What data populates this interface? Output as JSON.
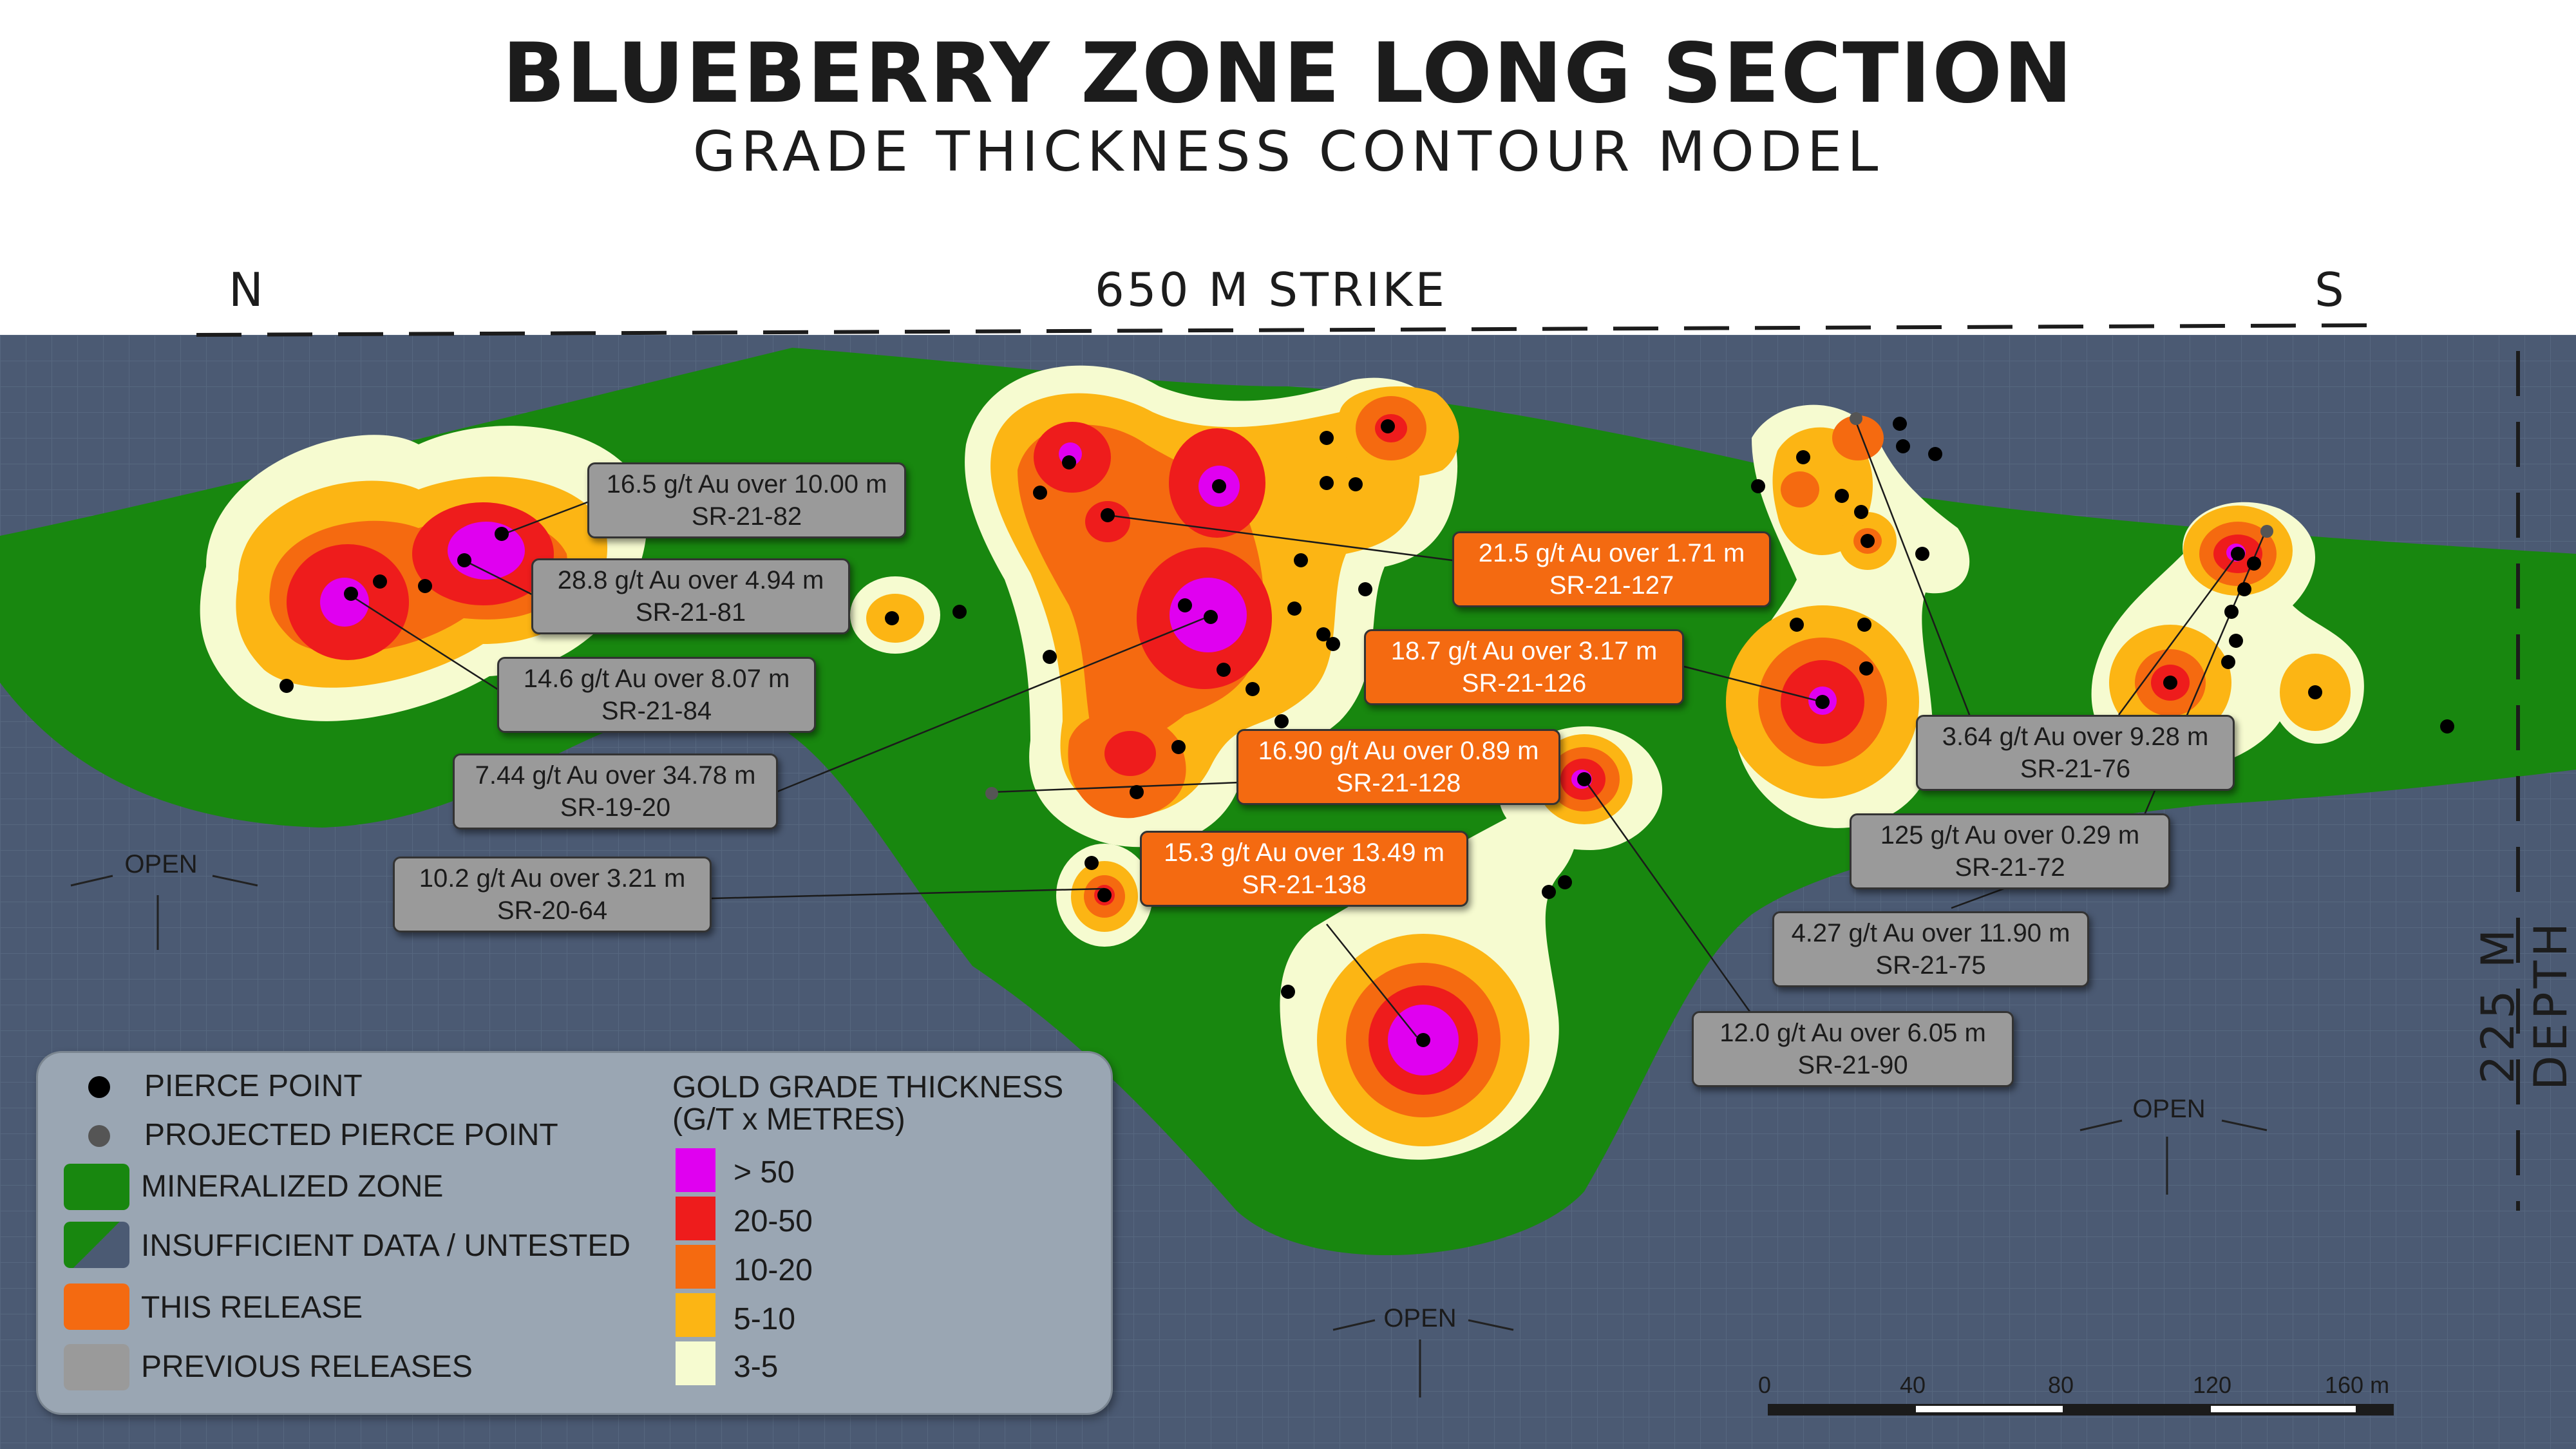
{
  "header": {
    "title": "BLUEBERRY ZONE LONG SECTION",
    "subtitle": "GRADE THICKNESS CONTOUR MODEL",
    "north": "N",
    "south": "S",
    "strike": "650 M STRIKE",
    "depth": "225 M DEPTH"
  },
  "callouts": [
    {
      "grade": "16.5 g/t Au over 10.00 m",
      "hole": "SR-21-82",
      "release": "previous"
    },
    {
      "grade": "28.8 g/t Au over 4.94 m",
      "hole": "SR-21-81",
      "release": "previous"
    },
    {
      "grade": "14.6 g/t Au over 8.07 m",
      "hole": "SR-21-84",
      "release": "previous"
    },
    {
      "grade": "7.44 g/t Au over 34.78 m",
      "hole": "SR-19-20",
      "release": "previous"
    },
    {
      "grade": "10.2 g/t Au over 3.21 m",
      "hole": "SR-20-64",
      "release": "previous"
    },
    {
      "grade": "21.5 g/t Au over 1.71 m",
      "hole": "SR-21-127",
      "release": "this"
    },
    {
      "grade": "18.7 g/t Au over 3.17 m",
      "hole": "SR-21-126",
      "release": "this"
    },
    {
      "grade": "16.90 g/t Au over 0.89 m",
      "hole": "SR-21-128",
      "release": "this"
    },
    {
      "grade": "15.3 g/t Au over 13.49 m",
      "hole": "SR-21-138",
      "release": "this"
    },
    {
      "grade": "3.64 g/t Au over 9.28 m",
      "hole": "SR-21-76",
      "release": "previous"
    },
    {
      "grade": "125 g/t Au over 0.29 m",
      "hole": "SR-21-72",
      "release": "previous"
    },
    {
      "grade": "4.27 g/t Au over 11.90 m",
      "hole": "SR-21-75",
      "release": "previous"
    },
    {
      "grade": "12.0 g/t Au over 6.05 m",
      "hole": "SR-21-90",
      "release": "previous"
    }
  ],
  "open_labels": [
    "OPEN",
    "OPEN",
    "OPEN"
  ],
  "legend": {
    "items": [
      {
        "label": "PIERCE POINT",
        "symbol": "black-dot"
      },
      {
        "label": "PROJECTED PIERCE POINT",
        "symbol": "grey-dot"
      },
      {
        "label": "MINERALIZED ZONE",
        "color": "#18870f"
      },
      {
        "label": "INSUFFICIENT DATA / UNTESTED",
        "symbol": "green-slate-split"
      },
      {
        "label": "THIS RELEASE",
        "color": "#f46a11"
      },
      {
        "label": "PREVIOUS RELEASES",
        "color": "#9a9a9a"
      }
    ],
    "grade_title_line1": "GOLD GRADE THICKNESS",
    "grade_title_line2": "(G/T x METRES)",
    "grades": [
      {
        "label": "> 50",
        "color": "#e000f0"
      },
      {
        "label": "20-50",
        "color": "#ee1c1c"
      },
      {
        "label": "10-20",
        "color": "#f56a10"
      },
      {
        "label": "5-10",
        "color": "#fcb514"
      },
      {
        "label": "3-5",
        "color": "#f6fbd0"
      }
    ]
  },
  "scale_bar": {
    "ticks": [
      "0",
      "40",
      "80",
      "120",
      "160 m"
    ]
  },
  "colors": {
    "untested": "#4b5a73",
    "mineralized": "#18870f",
    "grade_gt50": "#e000f0",
    "grade_20_50": "#ee1c1c",
    "grade_10_20": "#f56a10",
    "grade_5_10": "#fcb514",
    "grade_3_5": "#f6fbd0",
    "this_release": "#f46a11",
    "previous_release": "#9a9a9a"
  }
}
